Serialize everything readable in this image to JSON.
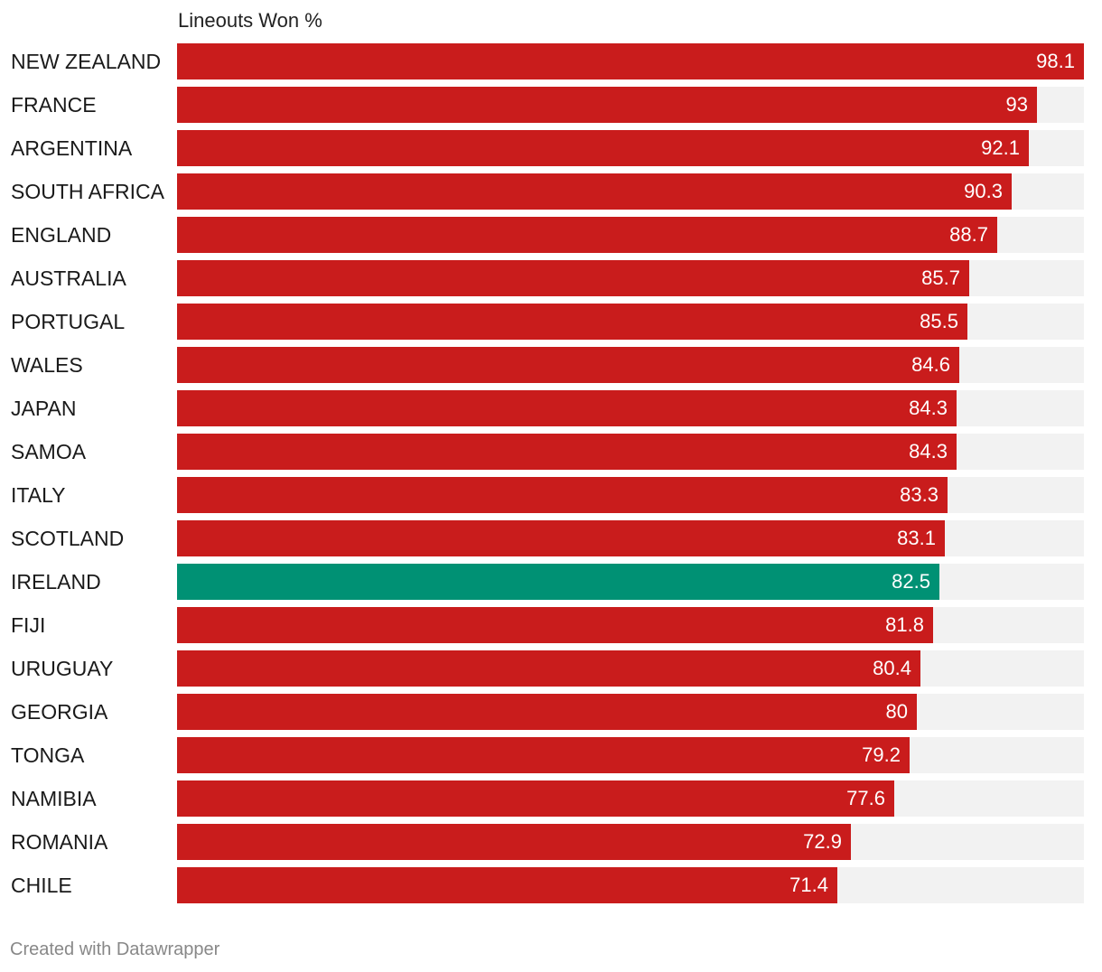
{
  "chart_data": {
    "type": "bar",
    "orientation": "horizontal",
    "column_header": "Lineouts Won %",
    "xlim": [
      0,
      98.1
    ],
    "colors": {
      "default": "#c91c1c",
      "highlight": "#009174",
      "track": "#f2f2f2"
    },
    "highlight": "IRELAND",
    "categories": [
      "NEW ZEALAND",
      "FRANCE",
      "ARGENTINA",
      "SOUTH AFRICA",
      "ENGLAND",
      "AUSTRALIA",
      "PORTUGAL",
      "WALES",
      "JAPAN",
      "SAMOA",
      "ITALY",
      "SCOTLAND",
      "IRELAND",
      "FIJI",
      "URUGUAY",
      "GEORGIA",
      "TONGA",
      "NAMIBIA",
      "ROMANIA",
      "CHILE"
    ],
    "values": [
      98.1,
      93,
      92.1,
      90.3,
      88.7,
      85.7,
      85.5,
      84.6,
      84.3,
      84.3,
      83.3,
      83.1,
      82.5,
      81.8,
      80.4,
      80,
      79.2,
      77.6,
      72.9,
      71.4
    ]
  },
  "footer": {
    "credit": "Created with Datawrapper"
  }
}
